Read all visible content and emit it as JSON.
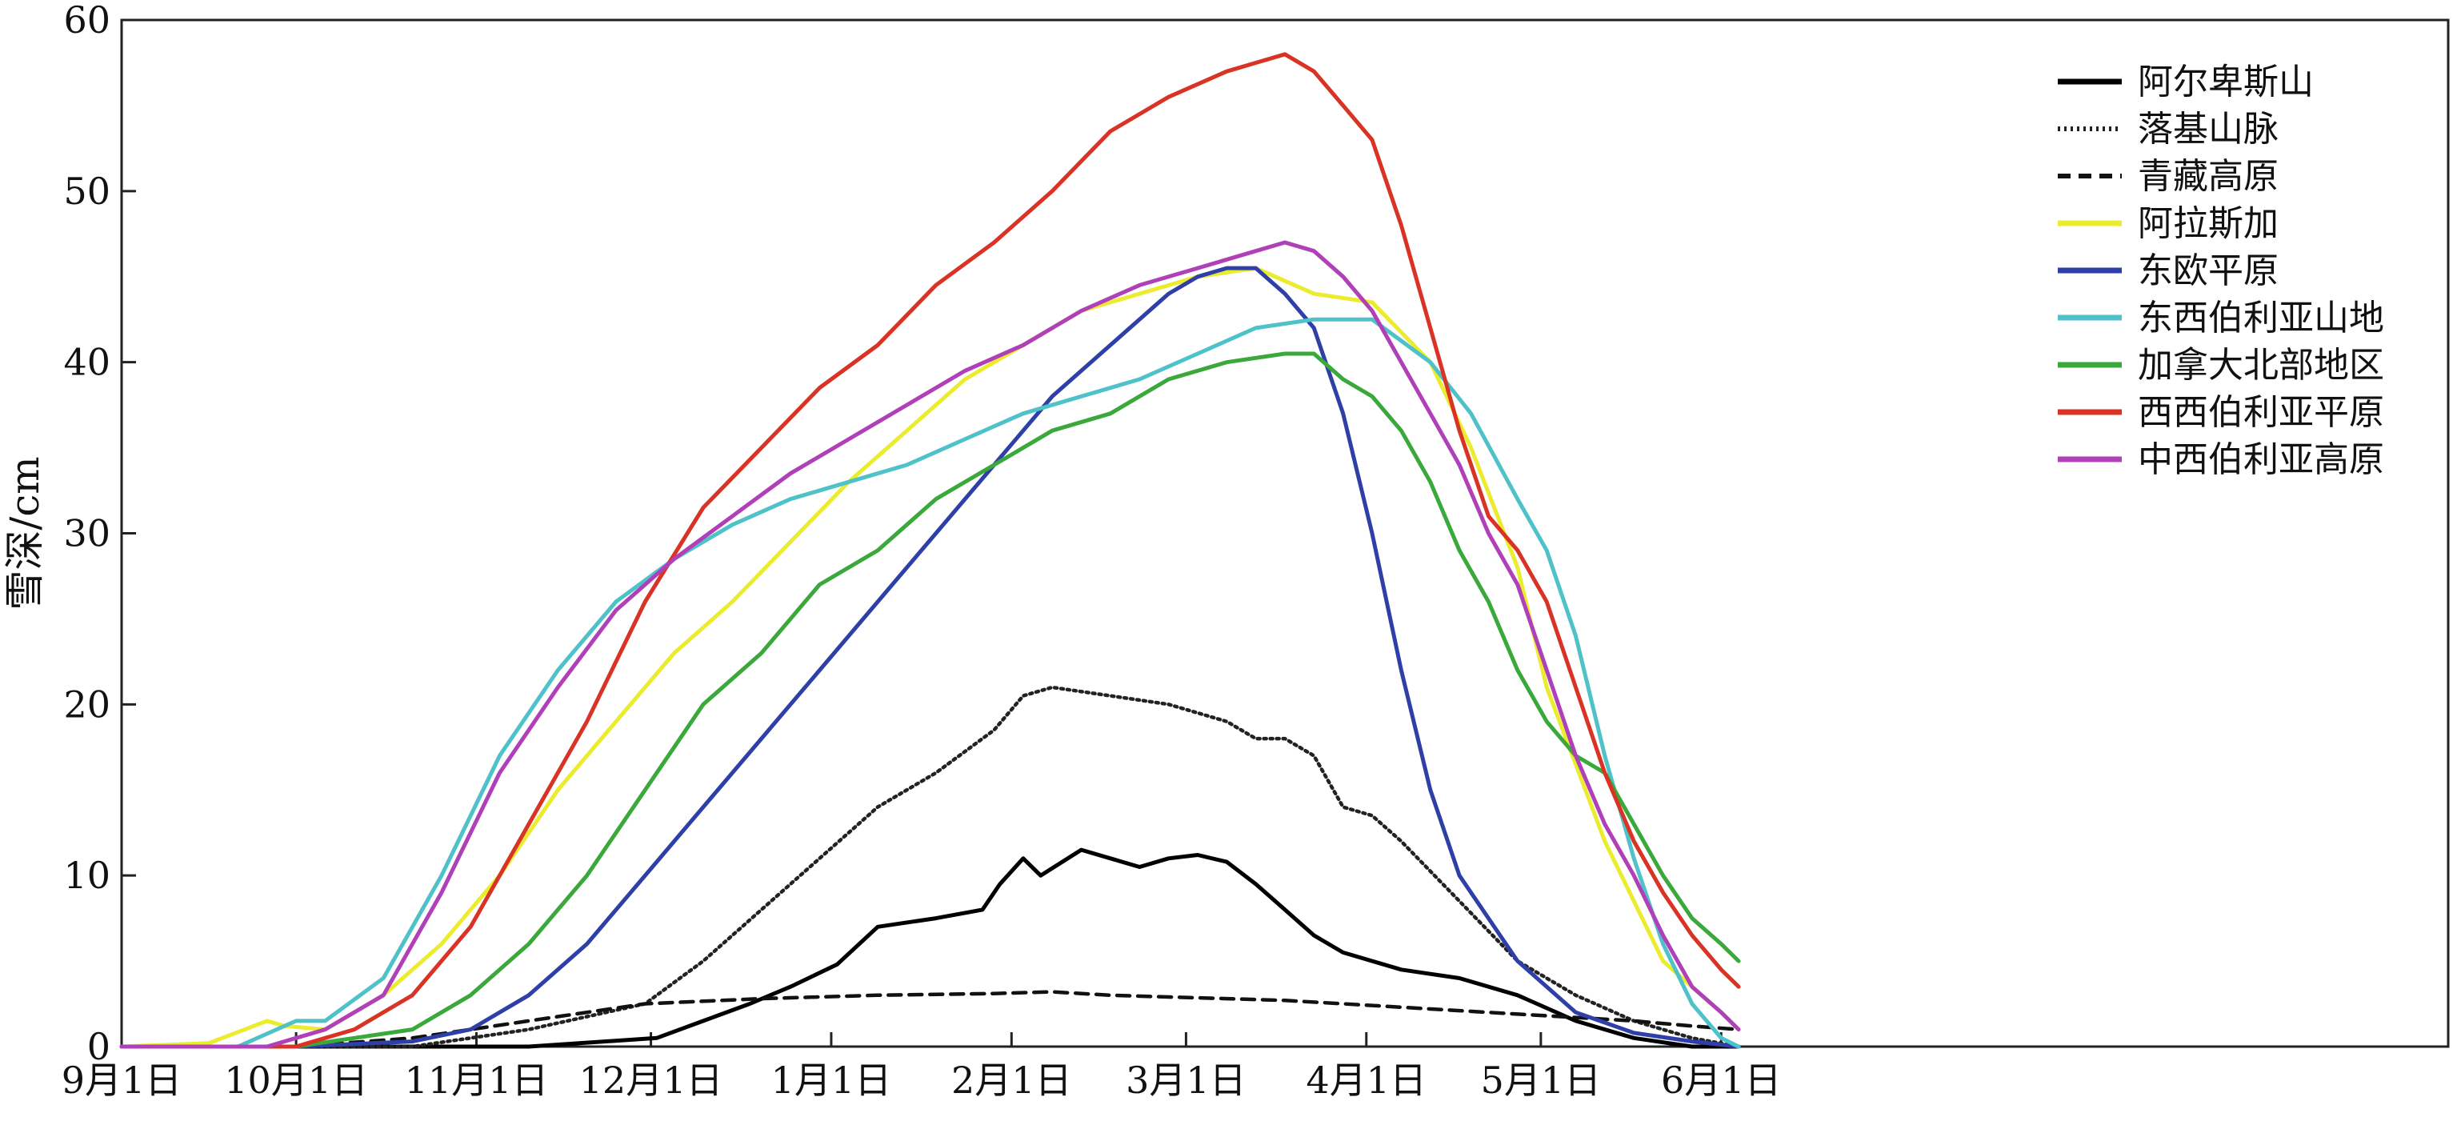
{
  "chart_data": {
    "type": "line",
    "title": "",
    "xlabel": "",
    "ylabel": "雪深/cm",
    "ylim": [
      0,
      60
    ],
    "yticks": [
      0,
      10,
      20,
      30,
      40,
      50,
      60
    ],
    "xlim": [
      0,
      400
    ],
    "grid": false,
    "legend_position": "top-right",
    "x_ticks": [
      {
        "label": "9月1日",
        "day": 0
      },
      {
        "label": "10月1日",
        "day": 30
      },
      {
        "label": "11月1日",
        "day": 61
      },
      {
        "label": "12月1日",
        "day": 91
      },
      {
        "label": "1月1日",
        "day": 122
      },
      {
        "label": "2月1日",
        "day": 153
      },
      {
        "label": "3月1日",
        "day": 183
      },
      {
        "label": "4月1日",
        "day": 214
      },
      {
        "label": "5月1日",
        "day": 244
      },
      {
        "label": "6月1日",
        "day": 275
      }
    ],
    "series": [
      {
        "name": "阿尔卑斯山",
        "color": "#000000",
        "dash": "solid",
        "x": [
          0,
          40,
          70,
          92,
          100,
          108,
          115,
          123,
          130,
          140,
          148,
          151,
          155,
          158,
          165,
          170,
          175,
          180,
          185,
          190,
          195,
          200,
          205,
          210,
          220,
          230,
          240,
          250,
          260,
          270,
          278
        ],
        "y": [
          0,
          0,
          0,
          0.5,
          1.5,
          2.5,
          3.5,
          4.8,
          7,
          7.5,
          8,
          9.5,
          11,
          10,
          11.5,
          11,
          10.5,
          11,
          11.2,
          10.8,
          9.5,
          8,
          6.5,
          5.5,
          4.5,
          4,
          3,
          1.5,
          0.5,
          0,
          0
        ]
      },
      {
        "name": "落基山脉",
        "color": "#222222",
        "dash": "dotted",
        "x": [
          0,
          30,
          50,
          70,
          90,
          100,
          110,
          120,
          130,
          140,
          150,
          155,
          160,
          170,
          180,
          190,
          195,
          200,
          205,
          210,
          215,
          220,
          230,
          240,
          250,
          260,
          270,
          278
        ],
        "y": [
          0,
          0,
          0,
          1,
          2.5,
          5,
          8,
          11,
          14,
          16,
          18.5,
          20.5,
          21,
          20.5,
          20,
          19,
          18,
          18,
          17,
          14,
          13.5,
          12,
          8.5,
          5,
          3,
          1.5,
          0.5,
          0
        ]
      },
      {
        "name": "青藏高原",
        "color": "#111111",
        "dash": "dashed",
        "x": [
          0,
          30,
          50,
          70,
          90,
          110,
          130,
          150,
          160,
          170,
          180,
          190,
          200,
          210,
          220,
          230,
          240,
          250,
          260,
          270,
          278
        ],
        "y": [
          0,
          0,
          0.5,
          1.5,
          2.5,
          2.8,
          3,
          3.1,
          3.2,
          3,
          2.9,
          2.8,
          2.7,
          2.5,
          2.3,
          2.1,
          1.9,
          1.7,
          1.5,
          1.2,
          1
        ]
      },
      {
        "name": "阿拉斯加",
        "color": "#ecec2e",
        "dash": "solid",
        "x": [
          0,
          15,
          25,
          28,
          35,
          45,
          55,
          65,
          75,
          85,
          95,
          105,
          115,
          125,
          135,
          145,
          155,
          165,
          175,
          185,
          195,
          205,
          215,
          225,
          232,
          240,
          245,
          255,
          265,
          275,
          278
        ],
        "y": [
          0,
          0.2,
          1.5,
          1.2,
          1,
          3,
          6,
          10,
          15,
          19,
          23,
          26,
          29.5,
          33,
          36,
          39,
          41,
          43,
          44,
          45,
          45.5,
          44,
          43.5,
          40,
          35,
          28,
          21,
          12,
          5,
          2,
          1
        ]
      },
      {
        "name": "东欧平原",
        "color": "#2e3fa8",
        "dash": "solid",
        "x": [
          0,
          30,
          50,
          60,
          70,
          80,
          90,
          100,
          110,
          120,
          130,
          140,
          150,
          160,
          170,
          180,
          185,
          190,
          195,
          200,
          205,
          210,
          215,
          220,
          225,
          230,
          240,
          250,
          260,
          270,
          278
        ],
        "y": [
          0,
          0,
          0.3,
          1,
          3,
          6,
          10,
          14,
          18,
          22,
          26,
          30,
          34,
          38,
          41,
          44,
          45,
          45.5,
          45.5,
          44,
          42,
          37,
          30,
          22,
          15,
          10,
          5,
          2,
          0.8,
          0.3,
          0
        ]
      },
      {
        "name": "东西伯利亚山地",
        "color": "#4ec2c8",
        "dash": "solid",
        "x": [
          0,
          20,
          30,
          35,
          45,
          55,
          65,
          75,
          85,
          95,
          105,
          115,
          125,
          135,
          145,
          155,
          165,
          175,
          185,
          195,
          205,
          215,
          225,
          232,
          240,
          245,
          250,
          255,
          260,
          265,
          270,
          275,
          278
        ],
        "y": [
          0,
          0,
          1.5,
          1.5,
          4,
          10,
          17,
          22,
          26,
          28.5,
          30.5,
          32,
          33,
          34,
          35.5,
          37,
          38,
          39,
          40.5,
          42,
          42.5,
          42.5,
          40,
          37,
          32,
          29,
          24,
          17,
          11,
          6,
          2.5,
          0.5,
          0
        ]
      },
      {
        "name": "加拿大北部地区",
        "color": "#3aa83a",
        "dash": "solid",
        "x": [
          0,
          30,
          40,
          50,
          60,
          70,
          80,
          90,
          100,
          110,
          120,
          130,
          140,
          150,
          160,
          170,
          180,
          190,
          200,
          205,
          210,
          215,
          220,
          225,
          230,
          235,
          240,
          245,
          250,
          255,
          260,
          265,
          270,
          275,
          278
        ],
        "y": [
          0,
          0,
          0.5,
          1,
          3,
          6,
          10,
          15,
          20,
          23,
          27,
          29,
          32,
          34,
          36,
          37,
          39,
          40,
          40.5,
          40.5,
          39,
          38,
          36,
          33,
          29,
          26,
          22,
          19,
          17,
          16,
          13,
          10,
          7.5,
          6,
          5
        ]
      },
      {
        "name": "西西伯利亚平原",
        "color": "#d93326",
        "dash": "solid",
        "x": [
          0,
          30,
          40,
          50,
          60,
          70,
          80,
          90,
          100,
          110,
          120,
          130,
          140,
          150,
          160,
          170,
          180,
          190,
          195,
          200,
          205,
          210,
          215,
          220,
          225,
          230,
          235,
          240,
          245,
          250,
          255,
          260,
          265,
          270,
          275,
          278
        ],
        "y": [
          0,
          0,
          1,
          3,
          7,
          13,
          19,
          26,
          31.5,
          35,
          38.5,
          41,
          44.5,
          47,
          50,
          53.5,
          55.5,
          57,
          57.5,
          58,
          57,
          55,
          53,
          48,
          42,
          36,
          31,
          29,
          26,
          21,
          16,
          12,
          9,
          6.5,
          4.5,
          3.5
        ]
      },
      {
        "name": "中西伯利亚高原",
        "color": "#b040b8",
        "dash": "solid",
        "x": [
          0,
          25,
          35,
          45,
          55,
          65,
          75,
          85,
          95,
          105,
          115,
          125,
          135,
          145,
          155,
          165,
          175,
          185,
          195,
          200,
          205,
          210,
          215,
          220,
          225,
          230,
          235,
          240,
          245,
          250,
          255,
          260,
          265,
          270,
          275,
          278
        ],
        "y": [
          0,
          0,
          1,
          3,
          9,
          16,
          21,
          25.5,
          28.5,
          31,
          33.5,
          35.5,
          37.5,
          39.5,
          41,
          43,
          44.5,
          45.5,
          46.5,
          47,
          46.5,
          45,
          43,
          40,
          37,
          34,
          30,
          27,
          22,
          17,
          13,
          10,
          6.5,
          3.5,
          2,
          1
        ]
      }
    ]
  }
}
